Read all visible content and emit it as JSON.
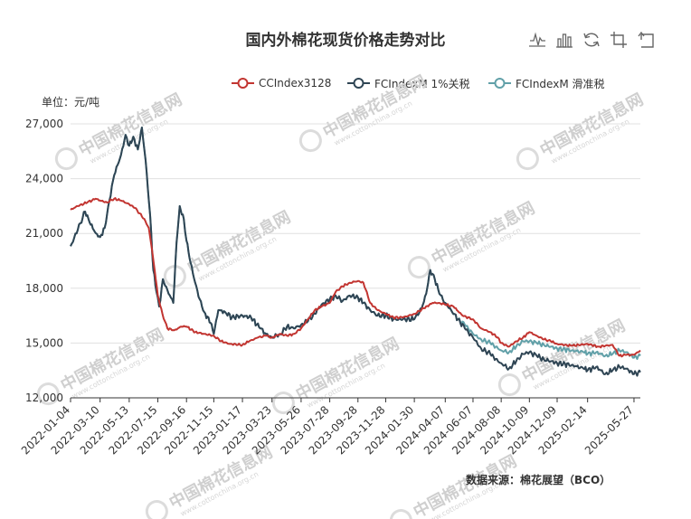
{
  "title": "国内外棉花现货价格走势对比",
  "unit_label": "单位：元/吨",
  "source": "数据来源：棉花展望（BCO）",
  "watermark": {
    "text": "中国棉花信息网",
    "sub": "www.cottonchina.org.cn"
  },
  "toolbox": [
    {
      "name": "line-chart-icon"
    },
    {
      "name": "bar-chart-icon"
    },
    {
      "name": "restore-icon"
    },
    {
      "name": "crop-icon"
    },
    {
      "name": "undo-icon"
    }
  ],
  "chart_data": {
    "type": "line",
    "title": "国内外棉花现货价格走势对比",
    "ylabel": "单位：元/吨",
    "ylim": [
      12000,
      27000
    ],
    "yticks": [
      12000,
      15000,
      18000,
      21000,
      24000,
      27000
    ],
    "ytick_labels": [
      "12,000",
      "15,000",
      "18,000",
      "21,000",
      "24,000",
      "27,000"
    ],
    "xlim": [
      "2022-01-04",
      "2025-06-10"
    ],
    "xticks": [
      "2022-01-04",
      "2022-03-10",
      "2022-05-13",
      "2022-07-15",
      "2022-09-16",
      "2022-11-15",
      "2023-01-17",
      "2023-03-23",
      "2023-05-26",
      "2023-07-28",
      "2023-09-28",
      "2023-11-28",
      "2024-01-30",
      "2024-04-07",
      "2024-06-07",
      "2024-08-08",
      "2024-10-09",
      "2024-12-09",
      "2025-02-14",
      "2025-05-27"
    ],
    "grid": true,
    "legend_position": "top-right",
    "series": [
      {
        "name": "CCIndex3128",
        "color": "#c23531",
        "points": [
          [
            "2022-01-04",
            22300
          ],
          [
            "2022-01-20",
            22500
          ],
          [
            "2022-02-10",
            22700
          ],
          [
            "2022-02-28",
            22900
          ],
          [
            "2022-03-10",
            22800
          ],
          [
            "2022-03-25",
            22700
          ],
          [
            "2022-04-10",
            22900
          ],
          [
            "2022-04-25",
            22800
          ],
          [
            "2022-05-13",
            22600
          ],
          [
            "2022-05-25",
            22400
          ],
          [
            "2022-06-05",
            22100
          ],
          [
            "2022-06-15",
            21800
          ],
          [
            "2022-06-25",
            21300
          ],
          [
            "2022-07-01",
            20300
          ],
          [
            "2022-07-08",
            19000
          ],
          [
            "2022-07-15",
            17600
          ],
          [
            "2022-07-25",
            16600
          ],
          [
            "2022-08-05",
            15800
          ],
          [
            "2022-08-20",
            15700
          ],
          [
            "2022-09-05",
            15900
          ],
          [
            "2022-09-16",
            15900
          ],
          [
            "2022-10-05",
            15600
          ],
          [
            "2022-10-25",
            15500
          ],
          [
            "2022-11-15",
            15400
          ],
          [
            "2022-12-01",
            15100
          ],
          [
            "2022-12-20",
            14950
          ],
          [
            "2023-01-17",
            14900
          ],
          [
            "2023-02-01",
            15100
          ],
          [
            "2023-02-20",
            15300
          ],
          [
            "2023-03-10",
            15400
          ],
          [
            "2023-03-23",
            15300
          ],
          [
            "2023-04-10",
            15500
          ],
          [
            "2023-04-25",
            15400
          ],
          [
            "2023-05-10",
            15500
          ],
          [
            "2023-05-26",
            15800
          ],
          [
            "2023-06-10",
            16300
          ],
          [
            "2023-06-25",
            16800
          ],
          [
            "2023-07-10",
            17000
          ],
          [
            "2023-07-28",
            17200
          ],
          [
            "2023-08-10",
            17800
          ],
          [
            "2023-08-25",
            18100
          ],
          [
            "2023-09-10",
            18300
          ],
          [
            "2023-09-28",
            18400
          ],
          [
            "2023-10-10",
            18300
          ],
          [
            "2023-10-25",
            17200
          ],
          [
            "2023-11-10",
            16800
          ],
          [
            "2023-11-28",
            16600
          ],
          [
            "2023-12-15",
            16400
          ],
          [
            "2024-01-05",
            16400
          ],
          [
            "2024-01-30",
            16600
          ],
          [
            "2024-02-20",
            16900
          ],
          [
            "2024-03-10",
            17200
          ],
          [
            "2024-03-25",
            17200
          ],
          [
            "2024-04-07",
            17100
          ],
          [
            "2024-04-25",
            17000
          ],
          [
            "2024-05-15",
            16500
          ],
          [
            "2024-06-07",
            16300
          ],
          [
            "2024-06-25",
            15800
          ],
          [
            "2024-07-15",
            15600
          ],
          [
            "2024-08-01",
            15300
          ],
          [
            "2024-08-08",
            15000
          ],
          [
            "2024-08-25",
            14800
          ],
          [
            "2024-09-10",
            15100
          ],
          [
            "2024-09-25",
            15300
          ],
          [
            "2024-10-09",
            15600
          ],
          [
            "2024-10-25",
            15400
          ],
          [
            "2024-11-10",
            15200
          ],
          [
            "2024-11-25",
            15100
          ],
          [
            "2024-12-09",
            14950
          ],
          [
            "2025-01-10",
            14850
          ],
          [
            "2025-02-14",
            14950
          ],
          [
            "2025-03-10",
            14800
          ],
          [
            "2025-03-25",
            14850
          ],
          [
            "2025-04-10",
            14900
          ],
          [
            "2025-04-25",
            14300
          ],
          [
            "2025-05-10",
            14350
          ],
          [
            "2025-05-27",
            14350
          ],
          [
            "2025-06-10",
            14600
          ]
        ]
      },
      {
        "name": "FCIndexM 1%关税",
        "color": "#2f4554",
        "points": [
          [
            "2022-01-04",
            20300
          ],
          [
            "2022-01-20",
            21200
          ],
          [
            "2022-02-05",
            22200
          ],
          [
            "2022-02-15",
            21600
          ],
          [
            "2022-03-01",
            21000
          ],
          [
            "2022-03-10",
            20800
          ],
          [
            "2022-03-20",
            21300
          ],
          [
            "2022-03-28",
            22500
          ],
          [
            "2022-04-10",
            24200
          ],
          [
            "2022-04-25",
            25300
          ],
          [
            "2022-05-05",
            26400
          ],
          [
            "2022-05-13",
            25800
          ],
          [
            "2022-05-22",
            26300
          ],
          [
            "2022-06-01",
            25600
          ],
          [
            "2022-06-10",
            26800
          ],
          [
            "2022-06-18",
            25000
          ],
          [
            "2022-06-28",
            22000
          ],
          [
            "2022-07-05",
            19000
          ],
          [
            "2022-07-12",
            17800
          ],
          [
            "2022-07-18",
            17000
          ],
          [
            "2022-07-26",
            18500
          ],
          [
            "2022-08-05",
            17900
          ],
          [
            "2022-08-18",
            17200
          ],
          [
            "2022-08-25",
            20500
          ],
          [
            "2022-09-01",
            22500
          ],
          [
            "2022-09-10",
            21800
          ],
          [
            "2022-09-16",
            20600
          ],
          [
            "2022-09-25",
            19400
          ],
          [
            "2022-10-05",
            18300
          ],
          [
            "2022-10-15",
            17400
          ],
          [
            "2022-10-25",
            16700
          ],
          [
            "2022-11-08",
            16100
          ],
          [
            "2022-11-15",
            15500
          ],
          [
            "2022-11-25",
            16800
          ],
          [
            "2022-12-10",
            16700
          ],
          [
            "2022-12-25",
            16400
          ],
          [
            "2023-01-17",
            16500
          ],
          [
            "2023-02-05",
            16400
          ],
          [
            "2023-02-25",
            15800
          ],
          [
            "2023-03-10",
            15500
          ],
          [
            "2023-03-23",
            15300
          ],
          [
            "2023-04-10",
            15500
          ],
          [
            "2023-04-25",
            15900
          ],
          [
            "2023-05-10",
            15800
          ],
          [
            "2023-05-26",
            16000
          ],
          [
            "2023-06-10",
            16200
          ],
          [
            "2023-06-25",
            16600
          ],
          [
            "2023-07-10",
            17100
          ],
          [
            "2023-07-28",
            17400
          ],
          [
            "2023-08-10",
            17600
          ],
          [
            "2023-08-25",
            17300
          ],
          [
            "2023-09-10",
            17600
          ],
          [
            "2023-09-28",
            17500
          ],
          [
            "2023-10-10",
            17200
          ],
          [
            "2023-10-25",
            16800
          ],
          [
            "2023-11-10",
            16500
          ],
          [
            "2023-11-28",
            16500
          ],
          [
            "2023-12-15",
            16300
          ],
          [
            "2024-01-05",
            16300
          ],
          [
            "2024-01-30",
            16300
          ],
          [
            "2024-02-15",
            16900
          ],
          [
            "2024-02-25",
            17700
          ],
          [
            "2024-03-05",
            19000
          ],
          [
            "2024-03-15",
            18500
          ],
          [
            "2024-03-25",
            17700
          ],
          [
            "2024-04-07",
            17200
          ],
          [
            "2024-04-20",
            16800
          ],
          [
            "2024-05-05",
            16300
          ],
          [
            "2024-05-20",
            15800
          ],
          [
            "2024-06-07",
            15300
          ],
          [
            "2024-06-25",
            14700
          ],
          [
            "2024-07-15",
            14400
          ],
          [
            "2024-08-01",
            14000
          ],
          [
            "2024-08-08",
            13900
          ],
          [
            "2024-08-25",
            13600
          ],
          [
            "2024-09-10",
            14000
          ],
          [
            "2024-09-25",
            14400
          ],
          [
            "2024-10-09",
            14500
          ],
          [
            "2024-10-25",
            14300
          ],
          [
            "2024-11-10",
            14100
          ],
          [
            "2024-11-25",
            14000
          ],
          [
            "2024-12-09",
            13900
          ],
          [
            "2025-01-10",
            13800
          ],
          [
            "2025-02-05",
            13600
          ],
          [
            "2025-02-14",
            13500
          ],
          [
            "2025-03-05",
            13700
          ],
          [
            "2025-03-25",
            13300
          ],
          [
            "2025-04-10",
            13500
          ],
          [
            "2025-04-25",
            13700
          ],
          [
            "2025-05-10",
            13600
          ],
          [
            "2025-05-27",
            13300
          ],
          [
            "2025-06-10",
            13400
          ]
        ]
      },
      {
        "name": "FCIndexM 滑准税",
        "color": "#61a0a8",
        "points": [
          [
            "2022-01-04",
            20300
          ],
          [
            "2022-01-20",
            21200
          ],
          [
            "2022-02-05",
            22200
          ],
          [
            "2022-02-15",
            21600
          ],
          [
            "2022-03-01",
            21000
          ],
          [
            "2022-03-10",
            20800
          ],
          [
            "2022-03-20",
            21300
          ],
          [
            "2022-03-28",
            22500
          ],
          [
            "2022-04-10",
            24200
          ],
          [
            "2022-04-25",
            25300
          ],
          [
            "2022-05-05",
            26400
          ],
          [
            "2022-05-13",
            25800
          ],
          [
            "2022-05-22",
            26300
          ],
          [
            "2022-06-01",
            25600
          ],
          [
            "2022-06-10",
            26800
          ],
          [
            "2022-06-18",
            25000
          ],
          [
            "2022-06-28",
            22000
          ],
          [
            "2022-07-05",
            19000
          ],
          [
            "2022-07-12",
            17800
          ],
          [
            "2022-07-18",
            17000
          ],
          [
            "2022-07-26",
            18500
          ],
          [
            "2022-08-05",
            17900
          ],
          [
            "2022-08-18",
            17200
          ],
          [
            "2022-08-25",
            20500
          ],
          [
            "2022-09-01",
            22500
          ],
          [
            "2022-09-10",
            21800
          ],
          [
            "2022-09-16",
            20600
          ],
          [
            "2022-09-25",
            19400
          ],
          [
            "2022-10-05",
            18300
          ],
          [
            "2022-10-15",
            17400
          ],
          [
            "2022-10-25",
            16700
          ],
          [
            "2022-11-08",
            16100
          ],
          [
            "2022-11-15",
            15500
          ],
          [
            "2022-11-25",
            16800
          ],
          [
            "2022-12-10",
            16700
          ],
          [
            "2022-12-25",
            16400
          ],
          [
            "2023-01-17",
            16500
          ],
          [
            "2023-02-05",
            16400
          ],
          [
            "2023-02-25",
            15800
          ],
          [
            "2023-03-10",
            15500
          ],
          [
            "2023-03-23",
            15300
          ],
          [
            "2023-04-10",
            15500
          ],
          [
            "2023-04-25",
            15900
          ],
          [
            "2023-05-10",
            15800
          ],
          [
            "2023-05-26",
            16000
          ],
          [
            "2023-06-10",
            16200
          ],
          [
            "2023-06-25",
            16600
          ],
          [
            "2023-07-10",
            17100
          ],
          [
            "2023-07-28",
            17400
          ],
          [
            "2023-08-10",
            17600
          ],
          [
            "2023-08-25",
            17300
          ],
          [
            "2023-09-10",
            17600
          ],
          [
            "2023-09-28",
            17500
          ],
          [
            "2023-10-10",
            17200
          ],
          [
            "2023-10-25",
            16800
          ],
          [
            "2023-11-10",
            16500
          ],
          [
            "2023-11-28",
            16500
          ],
          [
            "2023-12-15",
            16300
          ],
          [
            "2024-01-05",
            16300
          ],
          [
            "2024-01-30",
            16300
          ],
          [
            "2024-02-15",
            16900
          ],
          [
            "2024-02-25",
            17700
          ],
          [
            "2024-03-05",
            19000
          ],
          [
            "2024-03-15",
            18500
          ],
          [
            "2024-03-25",
            17700
          ],
          [
            "2024-04-07",
            17200
          ],
          [
            "2024-04-20",
            16800
          ],
          [
            "2024-05-05",
            16300
          ],
          [
            "2024-05-20",
            16000
          ],
          [
            "2024-06-07",
            15500
          ],
          [
            "2024-06-25",
            15200
          ],
          [
            "2024-07-15",
            15000
          ],
          [
            "2024-08-01",
            14700
          ],
          [
            "2024-08-08",
            14600
          ],
          [
            "2024-08-25",
            14500
          ],
          [
            "2024-09-10",
            14800
          ],
          [
            "2024-09-25",
            15100
          ],
          [
            "2024-10-09",
            15100
          ],
          [
            "2024-10-25",
            15000
          ],
          [
            "2024-11-10",
            14900
          ],
          [
            "2024-11-25",
            14800
          ],
          [
            "2024-12-09",
            14700
          ],
          [
            "2025-01-10",
            14600
          ],
          [
            "2025-02-05",
            14500
          ],
          [
            "2025-02-14",
            14400
          ],
          [
            "2025-03-05",
            14500
          ],
          [
            "2025-03-25",
            14300
          ],
          [
            "2025-04-10",
            14400
          ],
          [
            "2025-04-25",
            14600
          ],
          [
            "2025-05-10",
            14500
          ],
          [
            "2025-05-27",
            14200
          ],
          [
            "2025-06-10",
            14300
          ]
        ]
      }
    ]
  }
}
